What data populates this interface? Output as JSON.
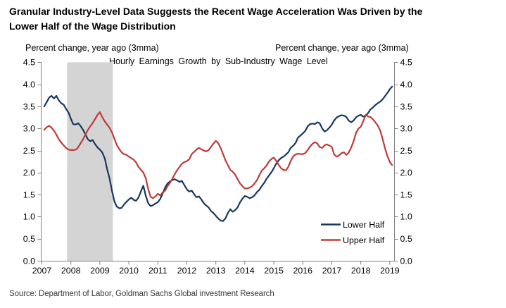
{
  "header": {
    "title_line1": "Granular Industry-Level Data Suggests the Recent Wage Acceleration Was Driven by the",
    "title_line2": "Lower Half of the Wage Distribution"
  },
  "footer": {
    "source": "Source: Department of Labor, Goldman Sachs Global investment Research"
  },
  "chart_data": {
    "type": "line",
    "title": "Hourly Earnings Growth by Sub-Industry Wage Level",
    "ylabel_left": "Percent change, year ago (3mma)",
    "ylabel_right": "Percent change, year ago (3mma)",
    "ylim": [
      0,
      4.5
    ],
    "y_tick_step": 0.5,
    "x_ticks": [
      2007,
      2008,
      2009,
      2010,
      2011,
      2012,
      2013,
      2014,
      2015,
      2016,
      2017,
      2018,
      2019
    ],
    "grid": false,
    "legend_position": "lower right",
    "axis_color": "#808080",
    "recession_band": {
      "x_start": 2007.87,
      "x_end": 2009.45,
      "color": "#d4d4d4"
    },
    "series": [
      {
        "name": "Lower Half",
        "color": "#17375d",
        "points": [
          [
            2007.08,
            3.5
          ],
          [
            2007.17,
            3.6
          ],
          [
            2007.25,
            3.7
          ],
          [
            2007.33,
            3.74
          ],
          [
            2007.42,
            3.68
          ],
          [
            2007.5,
            3.74
          ],
          [
            2007.58,
            3.64
          ],
          [
            2007.67,
            3.57
          ],
          [
            2007.75,
            3.54
          ],
          [
            2007.83,
            3.45
          ],
          [
            2007.92,
            3.36
          ],
          [
            2008.0,
            3.22
          ],
          [
            2008.08,
            3.1
          ],
          [
            2008.17,
            3.09
          ],
          [
            2008.25,
            3.12
          ],
          [
            2008.33,
            3.06
          ],
          [
            2008.42,
            2.97
          ],
          [
            2008.5,
            2.87
          ],
          [
            2008.58,
            2.76
          ],
          [
            2008.67,
            2.71
          ],
          [
            2008.75,
            2.74
          ],
          [
            2008.83,
            2.65
          ],
          [
            2008.92,
            2.57
          ],
          [
            2009.0,
            2.52
          ],
          [
            2009.08,
            2.46
          ],
          [
            2009.17,
            2.32
          ],
          [
            2009.25,
            2.08
          ],
          [
            2009.33,
            1.88
          ],
          [
            2009.42,
            1.58
          ],
          [
            2009.5,
            1.35
          ],
          [
            2009.58,
            1.23
          ],
          [
            2009.67,
            1.19
          ],
          [
            2009.75,
            1.2
          ],
          [
            2009.83,
            1.27
          ],
          [
            2009.92,
            1.34
          ],
          [
            2010.0,
            1.39
          ],
          [
            2010.08,
            1.43
          ],
          [
            2010.17,
            1.38
          ],
          [
            2010.25,
            1.36
          ],
          [
            2010.33,
            1.43
          ],
          [
            2010.42,
            1.58
          ],
          [
            2010.5,
            1.7
          ],
          [
            2010.58,
            1.48
          ],
          [
            2010.67,
            1.3
          ],
          [
            2010.75,
            1.24
          ],
          [
            2010.83,
            1.26
          ],
          [
            2010.92,
            1.3
          ],
          [
            2011.0,
            1.33
          ],
          [
            2011.08,
            1.4
          ],
          [
            2011.17,
            1.53
          ],
          [
            2011.25,
            1.66
          ],
          [
            2011.33,
            1.75
          ],
          [
            2011.42,
            1.8
          ],
          [
            2011.5,
            1.83
          ],
          [
            2011.58,
            1.85
          ],
          [
            2011.67,
            1.82
          ],
          [
            2011.75,
            1.79
          ],
          [
            2011.83,
            1.81
          ],
          [
            2011.92,
            1.71
          ],
          [
            2012.0,
            1.62
          ],
          [
            2012.08,
            1.57
          ],
          [
            2012.17,
            1.59
          ],
          [
            2012.25,
            1.51
          ],
          [
            2012.33,
            1.44
          ],
          [
            2012.42,
            1.46
          ],
          [
            2012.5,
            1.39
          ],
          [
            2012.58,
            1.31
          ],
          [
            2012.67,
            1.25
          ],
          [
            2012.75,
            1.21
          ],
          [
            2012.83,
            1.13
          ],
          [
            2012.92,
            1.08
          ],
          [
            2013.0,
            1.02
          ],
          [
            2013.08,
            0.96
          ],
          [
            2013.17,
            0.91
          ],
          [
            2013.25,
            0.9
          ],
          [
            2013.33,
            0.96
          ],
          [
            2013.42,
            1.09
          ],
          [
            2013.5,
            1.17
          ],
          [
            2013.58,
            1.11
          ],
          [
            2013.67,
            1.15
          ],
          [
            2013.75,
            1.21
          ],
          [
            2013.83,
            1.32
          ],
          [
            2013.92,
            1.41
          ],
          [
            2014.0,
            1.47
          ],
          [
            2014.08,
            1.45
          ],
          [
            2014.17,
            1.42
          ],
          [
            2014.25,
            1.44
          ],
          [
            2014.33,
            1.48
          ],
          [
            2014.42,
            1.56
          ],
          [
            2014.5,
            1.61
          ],
          [
            2014.58,
            1.69
          ],
          [
            2014.67,
            1.77
          ],
          [
            2014.75,
            1.86
          ],
          [
            2014.83,
            1.93
          ],
          [
            2014.92,
            2.01
          ],
          [
            2015.0,
            2.1
          ],
          [
            2015.08,
            2.2
          ],
          [
            2015.17,
            2.28
          ],
          [
            2015.25,
            2.33
          ],
          [
            2015.33,
            2.36
          ],
          [
            2015.42,
            2.41
          ],
          [
            2015.5,
            2.46
          ],
          [
            2015.58,
            2.56
          ],
          [
            2015.67,
            2.61
          ],
          [
            2015.75,
            2.67
          ],
          [
            2015.83,
            2.79
          ],
          [
            2015.92,
            2.84
          ],
          [
            2016.0,
            2.89
          ],
          [
            2016.08,
            2.94
          ],
          [
            2016.17,
            3.05
          ],
          [
            2016.25,
            3.1
          ],
          [
            2016.33,
            3.11
          ],
          [
            2016.42,
            3.1
          ],
          [
            2016.5,
            3.14
          ],
          [
            2016.58,
            3.12
          ],
          [
            2016.67,
            3.0
          ],
          [
            2016.75,
            2.93
          ],
          [
            2016.83,
            2.96
          ],
          [
            2016.92,
            3.02
          ],
          [
            2017.0,
            3.09
          ],
          [
            2017.08,
            3.18
          ],
          [
            2017.17,
            3.25
          ],
          [
            2017.25,
            3.28
          ],
          [
            2017.33,
            3.3
          ],
          [
            2017.42,
            3.29
          ],
          [
            2017.5,
            3.26
          ],
          [
            2017.58,
            3.18
          ],
          [
            2017.67,
            3.14
          ],
          [
            2017.75,
            3.18
          ],
          [
            2017.83,
            3.25
          ],
          [
            2017.92,
            3.29
          ],
          [
            2018.0,
            3.31
          ],
          [
            2018.08,
            3.27
          ],
          [
            2018.17,
            3.29
          ],
          [
            2018.25,
            3.35
          ],
          [
            2018.33,
            3.43
          ],
          [
            2018.42,
            3.48
          ],
          [
            2018.5,
            3.53
          ],
          [
            2018.58,
            3.57
          ],
          [
            2018.67,
            3.61
          ],
          [
            2018.75,
            3.66
          ],
          [
            2018.83,
            3.73
          ],
          [
            2018.92,
            3.81
          ],
          [
            2019.0,
            3.89
          ],
          [
            2019.08,
            3.95
          ]
        ]
      },
      {
        "name": "Upper Half",
        "color": "#be3b38",
        "points": [
          [
            2007.08,
            2.97
          ],
          [
            2007.17,
            3.03
          ],
          [
            2007.25,
            3.06
          ],
          [
            2007.33,
            3.02
          ],
          [
            2007.42,
            2.95
          ],
          [
            2007.5,
            2.86
          ],
          [
            2007.58,
            2.76
          ],
          [
            2007.67,
            2.68
          ],
          [
            2007.75,
            2.62
          ],
          [
            2007.83,
            2.56
          ],
          [
            2007.92,
            2.52
          ],
          [
            2008.0,
            2.51
          ],
          [
            2008.08,
            2.51
          ],
          [
            2008.17,
            2.52
          ],
          [
            2008.25,
            2.57
          ],
          [
            2008.33,
            2.66
          ],
          [
            2008.42,
            2.75
          ],
          [
            2008.5,
            2.86
          ],
          [
            2008.58,
            2.96
          ],
          [
            2008.67,
            3.05
          ],
          [
            2008.75,
            3.12
          ],
          [
            2008.83,
            3.21
          ],
          [
            2008.92,
            3.31
          ],
          [
            2009.0,
            3.37
          ],
          [
            2009.08,
            3.26
          ],
          [
            2009.17,
            3.16
          ],
          [
            2009.25,
            3.09
          ],
          [
            2009.33,
            3.02
          ],
          [
            2009.42,
            2.91
          ],
          [
            2009.5,
            2.77
          ],
          [
            2009.58,
            2.63
          ],
          [
            2009.67,
            2.53
          ],
          [
            2009.75,
            2.46
          ],
          [
            2009.83,
            2.42
          ],
          [
            2009.92,
            2.4
          ],
          [
            2010.0,
            2.36
          ],
          [
            2010.08,
            2.33
          ],
          [
            2010.17,
            2.29
          ],
          [
            2010.25,
            2.23
          ],
          [
            2010.33,
            2.13
          ],
          [
            2010.42,
            2.06
          ],
          [
            2010.5,
            2.0
          ],
          [
            2010.58,
            1.88
          ],
          [
            2010.67,
            1.62
          ],
          [
            2010.75,
            1.45
          ],
          [
            2010.83,
            1.42
          ],
          [
            2010.92,
            1.46
          ],
          [
            2011.0,
            1.52
          ],
          [
            2011.08,
            1.48
          ],
          [
            2011.17,
            1.55
          ],
          [
            2011.25,
            1.59
          ],
          [
            2011.33,
            1.69
          ],
          [
            2011.42,
            1.77
          ],
          [
            2011.5,
            1.86
          ],
          [
            2011.58,
            1.96
          ],
          [
            2011.67,
            2.06
          ],
          [
            2011.75,
            2.13
          ],
          [
            2011.83,
            2.2
          ],
          [
            2011.92,
            2.24
          ],
          [
            2012.0,
            2.26
          ],
          [
            2012.08,
            2.3
          ],
          [
            2012.17,
            2.42
          ],
          [
            2012.25,
            2.47
          ],
          [
            2012.33,
            2.52
          ],
          [
            2012.42,
            2.56
          ],
          [
            2012.5,
            2.53
          ],
          [
            2012.58,
            2.5
          ],
          [
            2012.67,
            2.48
          ],
          [
            2012.75,
            2.51
          ],
          [
            2012.83,
            2.58
          ],
          [
            2012.92,
            2.66
          ],
          [
            2013.0,
            2.72
          ],
          [
            2013.08,
            2.67
          ],
          [
            2013.17,
            2.55
          ],
          [
            2013.25,
            2.42
          ],
          [
            2013.33,
            2.28
          ],
          [
            2013.42,
            2.16
          ],
          [
            2013.5,
            2.06
          ],
          [
            2013.58,
            2.02
          ],
          [
            2013.67,
            1.95
          ],
          [
            2013.75,
            1.85
          ],
          [
            2013.83,
            1.76
          ],
          [
            2013.92,
            1.69
          ],
          [
            2014.0,
            1.64
          ],
          [
            2014.08,
            1.64
          ],
          [
            2014.17,
            1.66
          ],
          [
            2014.25,
            1.69
          ],
          [
            2014.33,
            1.75
          ],
          [
            2014.42,
            1.83
          ],
          [
            2014.5,
            1.94
          ],
          [
            2014.58,
            2.04
          ],
          [
            2014.67,
            2.1
          ],
          [
            2014.75,
            2.16
          ],
          [
            2014.83,
            2.25
          ],
          [
            2014.92,
            2.31
          ],
          [
            2015.0,
            2.34
          ],
          [
            2015.08,
            2.27
          ],
          [
            2015.17,
            2.17
          ],
          [
            2015.25,
            2.1
          ],
          [
            2015.33,
            2.06
          ],
          [
            2015.42,
            2.05
          ],
          [
            2015.5,
            2.13
          ],
          [
            2015.58,
            2.26
          ],
          [
            2015.67,
            2.37
          ],
          [
            2015.75,
            2.41
          ],
          [
            2015.83,
            2.43
          ],
          [
            2015.92,
            2.42
          ],
          [
            2016.0,
            2.42
          ],
          [
            2016.08,
            2.44
          ],
          [
            2016.17,
            2.51
          ],
          [
            2016.25,
            2.59
          ],
          [
            2016.33,
            2.65
          ],
          [
            2016.42,
            2.69
          ],
          [
            2016.5,
            2.66
          ],
          [
            2016.58,
            2.58
          ],
          [
            2016.67,
            2.56
          ],
          [
            2016.75,
            2.62
          ],
          [
            2016.83,
            2.64
          ],
          [
            2016.92,
            2.61
          ],
          [
            2017.0,
            2.58
          ],
          [
            2017.08,
            2.41
          ],
          [
            2017.17,
            2.36
          ],
          [
            2017.25,
            2.39
          ],
          [
            2017.33,
            2.44
          ],
          [
            2017.42,
            2.46
          ],
          [
            2017.5,
            2.4
          ],
          [
            2017.58,
            2.45
          ],
          [
            2017.67,
            2.57
          ],
          [
            2017.75,
            2.71
          ],
          [
            2017.83,
            2.89
          ],
          [
            2017.92,
            3.0
          ],
          [
            2018.0,
            3.04
          ],
          [
            2018.08,
            3.16
          ],
          [
            2018.17,
            3.31
          ],
          [
            2018.25,
            3.27
          ],
          [
            2018.33,
            3.26
          ],
          [
            2018.42,
            3.21
          ],
          [
            2018.5,
            3.14
          ],
          [
            2018.58,
            3.07
          ],
          [
            2018.67,
            2.95
          ],
          [
            2018.75,
            2.77
          ],
          [
            2018.83,
            2.56
          ],
          [
            2018.92,
            2.37
          ],
          [
            2019.0,
            2.24
          ],
          [
            2019.08,
            2.17
          ]
        ]
      }
    ]
  }
}
